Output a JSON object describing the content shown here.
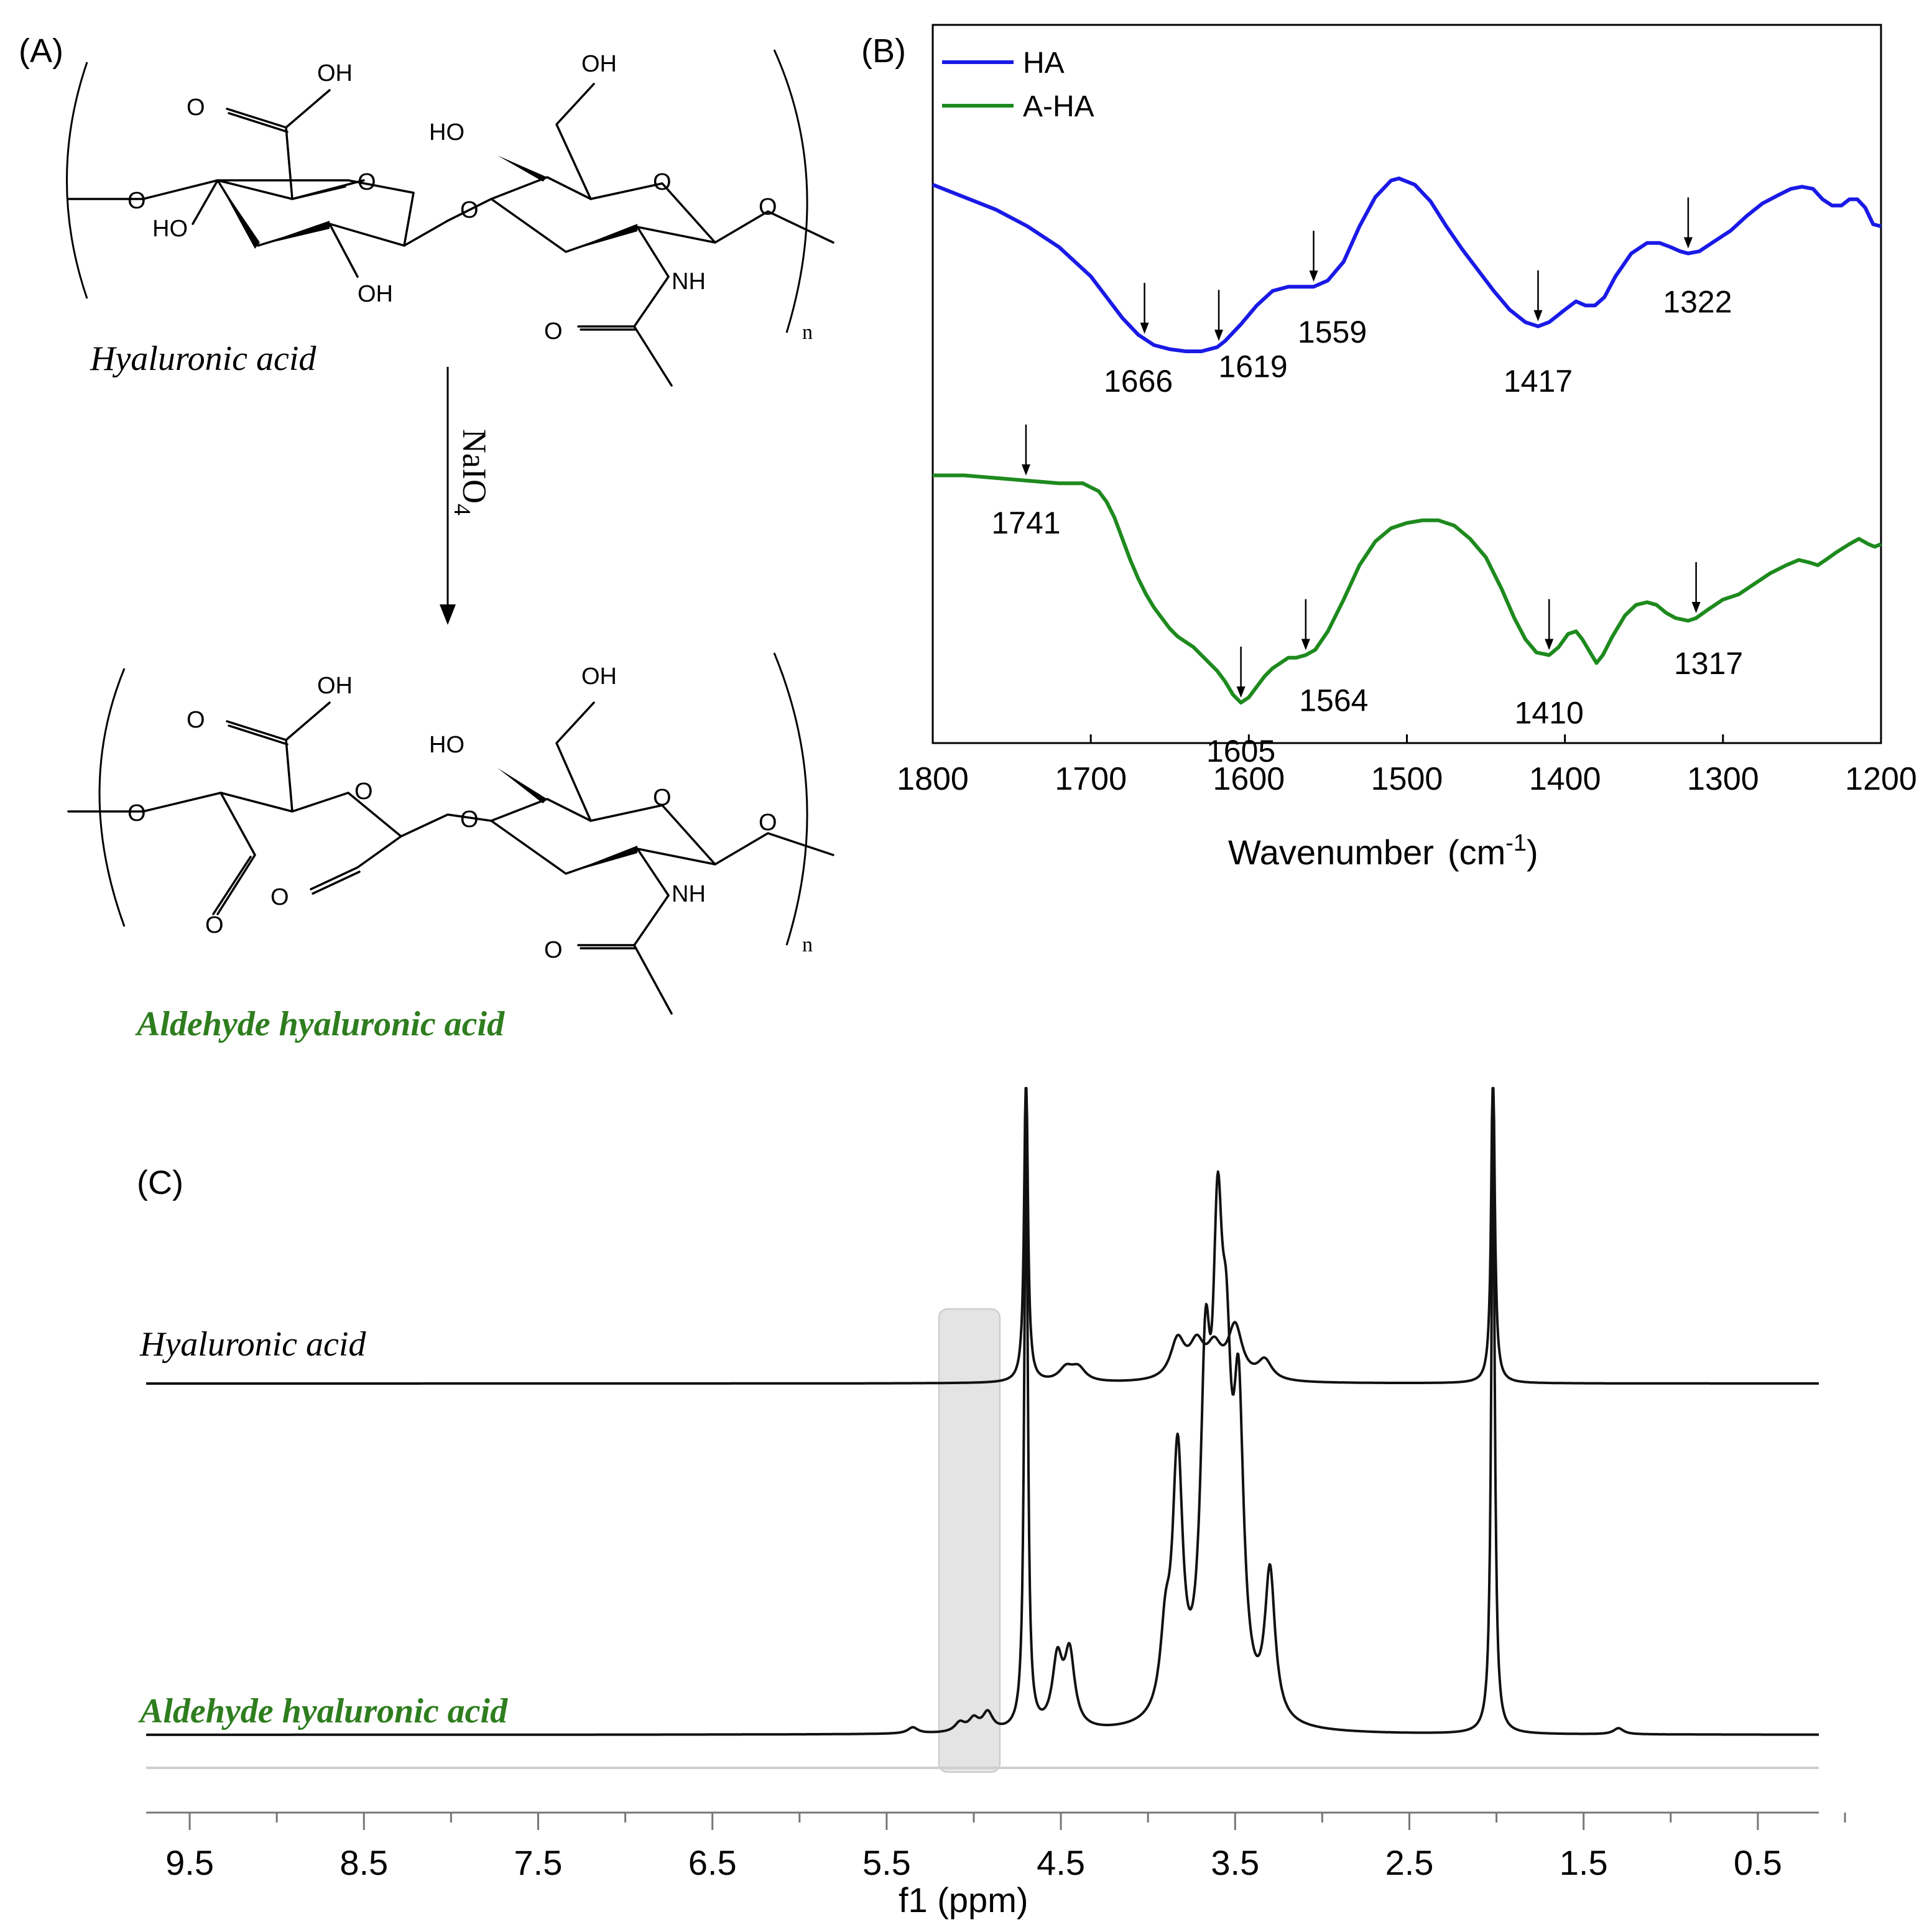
{
  "panel_a": {
    "label": "(A)",
    "top_compound": "Hyaluronic acid",
    "bottom_compound": "Aldehyde hyaluronic acid",
    "reagent_main": "NaIO",
    "reagent_sub": "4",
    "repeat_subscript": "n",
    "atoms": {
      "oh": "OH",
      "ho": "HO",
      "o": "O",
      "nh": "NH"
    },
    "colors": {
      "aldehyde_label": "#2e7d1e"
    }
  },
  "panel_b": {
    "label": "(B)",
    "xlabel": "Wavenumber",
    "xunit_text": "(cm",
    "xunit_sup": "-1",
    "xunit_close": ")",
    "colors": {
      "HA": "#1a1ae6",
      "A-HA": "#1e8a1e"
    }
  },
  "panel_c": {
    "label": "(C)",
    "trace_top_label": "Hyaluronic acid",
    "trace_bottom_label": "Aldehyde hyaluronic acid",
    "xlabel": "f1 (ppm)",
    "colors": {
      "aldehyde_label": "#2e7d1e",
      "trace": "#111111",
      "highlight": "#e4e4e4"
    }
  },
  "chart_data": [
    {
      "type": "line",
      "title": "",
      "xlabel": "Wavenumber (cm-1)",
      "ylabel": "",
      "xlim": [
        1800,
        1200
      ],
      "x_ticks": [
        "1800",
        "1700",
        "1600",
        "1500",
        "1400",
        "1300",
        "1200"
      ],
      "legend": [
        "HA",
        "A-HA"
      ],
      "legend_position": "top-left",
      "series": [
        {
          "name": "HA",
          "x": [
            1800,
            1780,
            1760,
            1740,
            1720,
            1700,
            1690,
            1680,
            1670,
            1660,
            1650,
            1640,
            1630,
            1620,
            1615,
            1605,
            1595,
            1585,
            1575,
            1565,
            1559,
            1550,
            1540,
            1530,
            1520,
            1510,
            1505,
            1495,
            1485,
            1475,
            1465,
            1455,
            1445,
            1435,
            1425,
            1417,
            1410,
            1400,
            1393,
            1387,
            1381,
            1375,
            1368,
            1358,
            1348,
            1340,
            1333,
            1327,
            1322,
            1315,
            1305,
            1295,
            1285,
            1275,
            1265,
            1257,
            1250,
            1243,
            1237,
            1231,
            1225,
            1220,
            1215,
            1210,
            1205,
            1200
          ],
          "y": [
            0.8,
            0.74,
            0.68,
            0.6,
            0.5,
            0.36,
            0.26,
            0.16,
            0.08,
            0.03,
            0.01,
            0.0,
            0.0,
            0.02,
            0.05,
            0.13,
            0.22,
            0.29,
            0.31,
            0.31,
            0.31,
            0.34,
            0.43,
            0.6,
            0.74,
            0.82,
            0.83,
            0.8,
            0.72,
            0.6,
            0.49,
            0.39,
            0.29,
            0.2,
            0.14,
            0.12,
            0.14,
            0.2,
            0.24,
            0.22,
            0.22,
            0.26,
            0.36,
            0.47,
            0.52,
            0.52,
            0.5,
            0.48,
            0.47,
            0.48,
            0.53,
            0.58,
            0.65,
            0.71,
            0.75,
            0.78,
            0.79,
            0.78,
            0.73,
            0.7,
            0.7,
            0.73,
            0.73,
            0.69,
            0.61,
            0.6
          ]
        },
        {
          "name": "A-HA",
          "x": [
            1800,
            1780,
            1760,
            1740,
            1720,
            1705,
            1695,
            1690,
            1685,
            1680,
            1675,
            1670,
            1665,
            1660,
            1655,
            1650,
            1645,
            1640,
            1635,
            1630,
            1625,
            1620,
            1615,
            1610,
            1605,
            1600,
            1595,
            1590,
            1585,
            1580,
            1575,
            1570,
            1564,
            1558,
            1550,
            1540,
            1530,
            1520,
            1510,
            1500,
            1490,
            1480,
            1470,
            1460,
            1450,
            1440,
            1432,
            1425,
            1418,
            1410,
            1404,
            1398,
            1393,
            1389,
            1384,
            1380,
            1376,
            1370,
            1362,
            1355,
            1348,
            1342,
            1336,
            1330,
            1322,
            1317,
            1310,
            1300,
            1290,
            1280,
            1270,
            1260,
            1252,
            1245,
            1240,
            1235,
            1228,
            1220,
            1214,
            1208,
            1204,
            1200
          ],
          "y": [
            0.86,
            0.86,
            0.85,
            0.84,
            0.83,
            0.83,
            0.8,
            0.76,
            0.7,
            0.62,
            0.54,
            0.47,
            0.41,
            0.36,
            0.32,
            0.28,
            0.25,
            0.23,
            0.21,
            0.18,
            0.15,
            0.12,
            0.08,
            0.03,
            0.0,
            0.02,
            0.06,
            0.1,
            0.13,
            0.15,
            0.17,
            0.17,
            0.18,
            0.2,
            0.27,
            0.39,
            0.52,
            0.61,
            0.66,
            0.68,
            0.69,
            0.69,
            0.67,
            0.62,
            0.55,
            0.43,
            0.32,
            0.24,
            0.19,
            0.18,
            0.21,
            0.26,
            0.27,
            0.24,
            0.19,
            0.15,
            0.18,
            0.25,
            0.33,
            0.37,
            0.38,
            0.37,
            0.34,
            0.32,
            0.31,
            0.32,
            0.35,
            0.39,
            0.41,
            0.45,
            0.49,
            0.52,
            0.54,
            0.53,
            0.52,
            0.54,
            0.57,
            0.6,
            0.62,
            0.6,
            0.59,
            0.6
          ]
        }
      ],
      "annotations": [
        {
          "series": "A-HA",
          "text": "1741",
          "x": 1741
        },
        {
          "series": "HA",
          "text": "1666",
          "x": 1666
        },
        {
          "series": "HA",
          "text": "1619",
          "x": 1619
        },
        {
          "series": "HA",
          "text": "1559",
          "x": 1559
        },
        {
          "series": "HA",
          "text": "1417",
          "x": 1417
        },
        {
          "series": "HA",
          "text": "1322",
          "x": 1322
        },
        {
          "series": "A-HA",
          "text": "1605",
          "x": 1605
        },
        {
          "series": "A-HA",
          "text": "1564",
          "x": 1564
        },
        {
          "series": "A-HA",
          "text": "1410",
          "x": 1410
        },
        {
          "series": "A-HA",
          "text": "1317",
          "x": 1317
        }
      ]
    },
    {
      "type": "line",
      "title": "",
      "xlabel": "f1 (ppm)",
      "ylabel": "",
      "xlim": [
        9.75,
        0.15
      ],
      "x_ticks": [
        "9.5",
        "8.5",
        "7.5",
        "6.5",
        "5.5",
        "4.5",
        "3.5",
        "2.5",
        "1.5",
        "0.5"
      ],
      "highlight_region_ppm": [
        4.85,
        5.2
      ],
      "series": [
        {
          "name": "Hyaluronic acid",
          "peaks": [
            {
              "ppm": 4.7,
              "height": 1.0
            },
            {
              "ppm": 4.47,
              "height": 0.04
            },
            {
              "ppm": 4.4,
              "height": 0.04
            },
            {
              "ppm": 3.83,
              "height": 0.12
            },
            {
              "ppm": 3.72,
              "height": 0.1
            },
            {
              "ppm": 3.62,
              "height": 0.09
            },
            {
              "ppm": 3.5,
              "height": 0.16
            },
            {
              "ppm": 3.33,
              "height": 0.06
            },
            {
              "ppm": 2.02,
              "height": 1.0
            }
          ]
        },
        {
          "name": "Aldehyde hyaluronic acid",
          "peaks": [
            {
              "ppm": 5.35,
              "height": 0.01
            },
            {
              "ppm": 5.08,
              "height": 0.015
            },
            {
              "ppm": 5.0,
              "height": 0.02
            },
            {
              "ppm": 4.92,
              "height": 0.03
            },
            {
              "ppm": 4.7,
              "height": 1.0
            },
            {
              "ppm": 4.52,
              "height": 0.11
            },
            {
              "ppm": 4.45,
              "height": 0.12
            },
            {
              "ppm": 3.9,
              "height": 0.12
            },
            {
              "ppm": 3.83,
              "height": 0.42
            },
            {
              "ppm": 3.67,
              "height": 0.5
            },
            {
              "ppm": 3.6,
              "height": 0.64
            },
            {
              "ppm": 3.55,
              "height": 0.4
            },
            {
              "ppm": 3.48,
              "height": 0.46
            },
            {
              "ppm": 3.3,
              "height": 0.24
            },
            {
              "ppm": 2.02,
              "height": 1.0
            },
            {
              "ppm": 1.3,
              "height": 0.01
            }
          ]
        }
      ]
    }
  ]
}
